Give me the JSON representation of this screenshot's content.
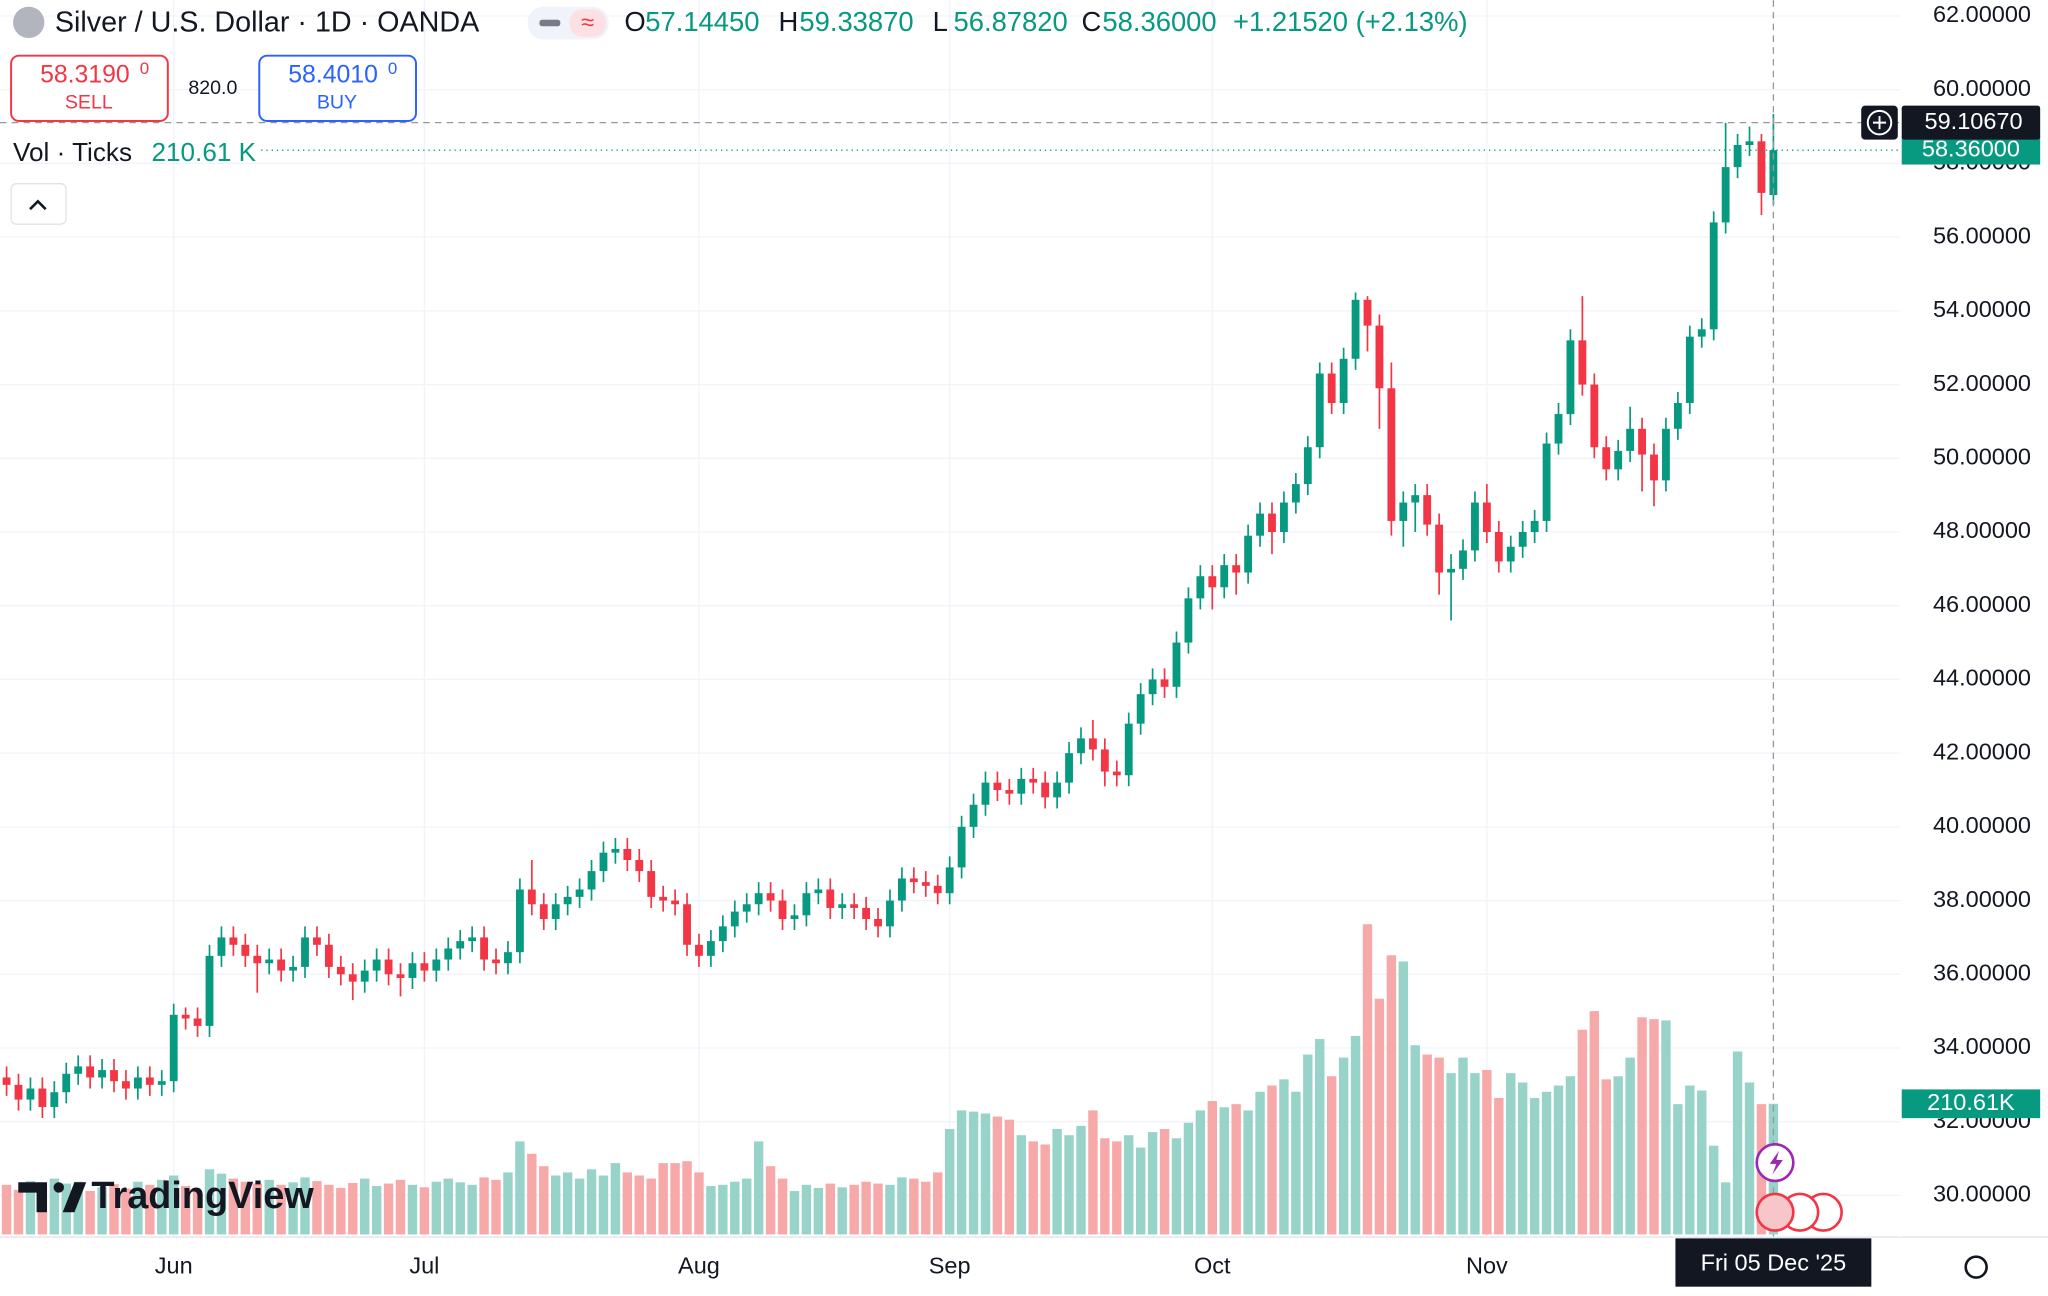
{
  "header": {
    "title": "Silver / U.S. Dollar · 1D · OANDA",
    "ohlc": [
      {
        "key": "O",
        "value": "57.14450"
      },
      {
        "key": "H",
        "value": "59.33870"
      },
      {
        "key": "L",
        "value": "56.87820"
      },
      {
        "key": "C",
        "value": "58.36000"
      }
    ],
    "change": "+1.21520 (+2.13%)"
  },
  "trade": {
    "sell_price": "58.3190",
    "sell_pip": "0",
    "sell_label": "SELL",
    "spread": "820.0",
    "buy_price": "58.4010",
    "buy_pip": "0",
    "buy_label": "BUY"
  },
  "volume_legend": {
    "name": "Vol · Ticks",
    "value": "210.61 K",
    "axis_label": "210.61K"
  },
  "logo": "TradingView",
  "chart_data": {
    "type": "candlestick",
    "up_color": "#089981",
    "down_color": "#f23645",
    "volume_up_color": "#98d3ca",
    "volume_down_color": "#f7a8a8",
    "grid": true,
    "xlim": [
      -0.55,
      158.64
    ],
    "xticks": [
      {
        "value": 14,
        "label": "Jun"
      },
      {
        "value": 35,
        "label": "Jul"
      },
      {
        "value": 58,
        "label": "Aug"
      },
      {
        "value": 79,
        "label": "Sep"
      },
      {
        "value": 101,
        "label": "Oct"
      },
      {
        "value": 124,
        "label": "Nov"
      }
    ],
    "ylim": [
      28.87,
      62.43
    ],
    "yticks": [
      {
        "value": 62,
        "label": "62.00000"
      },
      {
        "value": 60,
        "label": "60.00000"
      },
      {
        "value": 58,
        "label": "58.00000"
      },
      {
        "value": 56,
        "label": "56.00000"
      },
      {
        "value": 54,
        "label": "54.00000"
      },
      {
        "value": 52,
        "label": "52.00000"
      },
      {
        "value": 50,
        "label": "50.00000"
      },
      {
        "value": 48,
        "label": "48.00000"
      },
      {
        "value": 46,
        "label": "46.00000"
      },
      {
        "value": 44,
        "label": "44.00000"
      },
      {
        "value": 42,
        "label": "42.00000"
      },
      {
        "value": 40,
        "label": "40.00000"
      },
      {
        "value": 38,
        "label": "38.00000"
      },
      {
        "value": 36,
        "label": "36.00000"
      },
      {
        "value": 34,
        "label": "34.00000"
      },
      {
        "value": 32,
        "label": "32.00000"
      },
      {
        "value": 30,
        "label": "30.00000"
      }
    ],
    "last_price_label": "58.36000",
    "crosshair": {
      "x": 148,
      "y": 59.1067,
      "x_label": "Fri 05 Dec '25",
      "y_label": "59.10670"
    },
    "open": [
      33.2,
      33.0,
      32.6,
      32.9,
      32.4,
      32.8,
      33.3,
      33.5,
      33.2,
      33.4,
      33.1,
      32.9,
      33.2,
      33.0,
      33.1,
      34.9,
      34.8,
      34.6,
      36.5,
      37.0,
      36.8,
      36.5,
      36.3,
      36.4,
      36.1,
      36.2,
      37.0,
      36.8,
      36.2,
      36.0,
      35.8,
      36.1,
      36.4,
      36.0,
      35.9,
      36.3,
      36.1,
      36.4,
      36.7,
      36.9,
      37.0,
      36.4,
      36.3,
      36.6,
      38.3,
      37.9,
      37.5,
      37.9,
      38.1,
      38.3,
      38.8,
      39.3,
      39.4,
      39.1,
      38.8,
      38.1,
      38.0,
      37.9,
      36.8,
      36.5,
      36.9,
      37.3,
      37.7,
      37.9,
      38.2,
      38.0,
      37.5,
      37.6,
      38.2,
      38.3,
      37.8,
      37.9,
      37.8,
      37.5,
      37.3,
      38.0,
      38.6,
      38.5,
      38.4,
      38.2,
      38.9,
      40.0,
      40.6,
      41.2,
      41.0,
      40.9,
      41.3,
      41.2,
      40.8,
      41.2,
      42.0,
      42.4,
      42.1,
      41.5,
      41.4,
      42.8,
      43.6,
      44.0,
      43.8,
      45.0,
      46.2,
      46.8,
      46.5,
      47.1,
      46.9,
      47.9,
      48.5,
      48.0,
      48.8,
      49.3,
      50.3,
      52.3,
      51.5,
      52.7,
      54.3,
      53.6,
      51.9,
      48.3,
      48.8,
      49.0,
      48.2,
      46.9,
      47.0,
      47.5,
      48.8,
      48.0,
      47.2,
      47.6,
      48.0,
      48.3,
      50.4,
      51.2,
      53.2,
      52.0,
      50.3,
      49.7,
      50.2,
      50.8,
      50.1,
      49.4,
      50.8,
      51.5,
      53.3,
      53.5,
      56.4,
      57.9,
      58.5,
      58.6,
      57.1445
    ],
    "high": [
      33.5,
      33.3,
      33.2,
      33.2,
      33.1,
      33.6,
      33.8,
      33.8,
      33.7,
      33.7,
      33.4,
      33.5,
      33.5,
      33.4,
      35.2,
      35.1,
      35.1,
      36.8,
      37.3,
      37.3,
      37.1,
      36.8,
      36.7,
      36.7,
      36.5,
      37.3,
      37.3,
      37.1,
      36.5,
      36.3,
      36.4,
      36.7,
      36.7,
      36.3,
      36.6,
      36.6,
      36.7,
      37.0,
      37.2,
      37.3,
      37.3,
      36.7,
      36.9,
      38.6,
      39.1,
      38.2,
      38.2,
      38.4,
      38.6,
      39.1,
      39.6,
      39.7,
      39.7,
      39.4,
      39.1,
      38.4,
      38.3,
      38.2,
      37.1,
      37.2,
      37.6,
      38.0,
      38.2,
      38.5,
      38.5,
      38.3,
      37.9,
      38.5,
      38.6,
      38.6,
      38.2,
      38.2,
      38.1,
      37.8,
      38.3,
      38.9,
      38.9,
      38.8,
      38.7,
      39.2,
      40.3,
      40.9,
      41.5,
      41.5,
      41.3,
      41.6,
      41.6,
      41.5,
      41.5,
      42.3,
      42.7,
      42.9,
      42.4,
      41.8,
      43.1,
      43.9,
      44.3,
      44.3,
      45.3,
      46.5,
      47.1,
      47.1,
      47.4,
      47.4,
      48.2,
      48.8,
      48.8,
      49.1,
      49.6,
      50.6,
      52.6,
      52.6,
      53.0,
      54.5,
      54.4,
      53.9,
      52.6,
      49.1,
      49.3,
      49.3,
      48.5,
      47.4,
      47.8,
      49.1,
      49.3,
      48.3,
      47.9,
      48.3,
      48.6,
      50.7,
      51.5,
      53.5,
      54.4,
      52.3,
      50.6,
      50.5,
      51.4,
      51.1,
      50.4,
      51.1,
      51.8,
      53.6,
      53.8,
      56.7,
      59.1,
      58.8,
      59.0,
      58.8,
      59.3387
    ],
    "low": [
      32.7,
      32.3,
      32.3,
      32.1,
      32.1,
      32.5,
      33.0,
      32.9,
      32.9,
      32.8,
      32.6,
      32.6,
      32.7,
      32.7,
      32.8,
      34.5,
      34.3,
      34.3,
      36.2,
      36.5,
      36.2,
      35.5,
      36.0,
      35.8,
      35.8,
      35.9,
      36.5,
      35.9,
      35.7,
      35.3,
      35.5,
      35.8,
      35.7,
      35.4,
      35.6,
      35.8,
      35.8,
      36.1,
      36.4,
      36.6,
      36.1,
      36.0,
      36.0,
      36.3,
      37.6,
      37.2,
      37.2,
      37.6,
      37.8,
      38.0,
      38.5,
      39.0,
      38.8,
      38.5,
      37.8,
      37.7,
      37.6,
      36.5,
      36.2,
      36.2,
      36.6,
      37.0,
      37.4,
      37.6,
      37.7,
      37.2,
      37.2,
      37.3,
      37.9,
      37.5,
      37.5,
      37.5,
      37.2,
      37.0,
      37.0,
      37.7,
      38.2,
      38.1,
      37.9,
      37.9,
      38.6,
      39.7,
      40.3,
      40.7,
      40.6,
      40.6,
      40.9,
      40.5,
      40.5,
      40.9,
      41.7,
      41.8,
      41.1,
      41.1,
      41.1,
      42.5,
      43.3,
      43.5,
      43.5,
      44.7,
      45.9,
      45.9,
      46.2,
      46.3,
      46.6,
      47.6,
      47.4,
      47.7,
      48.5,
      49.0,
      50.0,
      51.2,
      51.2,
      52.4,
      52.9,
      50.8,
      47.9,
      47.6,
      48.0,
      47.9,
      46.3,
      45.6,
      46.7,
      47.2,
      47.7,
      46.9,
      46.9,
      47.3,
      47.7,
      48.0,
      50.1,
      50.9,
      51.7,
      50.0,
      49.4,
      49.4,
      49.9,
      49.1,
      48.7,
      49.1,
      50.5,
      51.2,
      53.0,
      53.2,
      56.1,
      57.6,
      58.2,
      56.6,
      56.8782
    ],
    "close": [
      33.0,
      32.6,
      32.9,
      32.4,
      32.8,
      33.3,
      33.5,
      33.2,
      33.4,
      33.1,
      32.9,
      33.2,
      33.0,
      33.1,
      34.9,
      34.8,
      34.6,
      36.5,
      37.0,
      36.8,
      36.5,
      36.3,
      36.4,
      36.1,
      36.2,
      37.0,
      36.8,
      36.2,
      36.0,
      35.8,
      36.1,
      36.4,
      36.0,
      35.9,
      36.3,
      36.1,
      36.4,
      36.7,
      36.9,
      37.0,
      36.4,
      36.3,
      36.6,
      38.3,
      37.9,
      37.5,
      37.9,
      38.1,
      38.3,
      38.8,
      39.3,
      39.4,
      39.1,
      38.8,
      38.1,
      38.0,
      37.9,
      36.8,
      36.5,
      36.9,
      37.3,
      37.7,
      37.9,
      38.2,
      38.0,
      37.5,
      37.6,
      38.2,
      38.3,
      37.8,
      37.9,
      37.8,
      37.5,
      37.3,
      38.0,
      38.6,
      38.5,
      38.4,
      38.2,
      38.9,
      40.0,
      40.6,
      41.2,
      41.0,
      40.9,
      41.3,
      41.2,
      40.8,
      41.2,
      42.0,
      42.4,
      42.1,
      41.5,
      41.4,
      42.8,
      43.6,
      44.0,
      43.8,
      45.0,
      46.2,
      46.8,
      46.5,
      47.1,
      46.9,
      47.9,
      48.5,
      48.0,
      48.8,
      49.3,
      50.3,
      52.3,
      51.5,
      52.7,
      54.3,
      53.6,
      51.9,
      48.3,
      48.8,
      49.0,
      48.2,
      46.9,
      47.0,
      47.5,
      48.8,
      48.0,
      47.2,
      47.6,
      48.0,
      48.3,
      50.4,
      51.2,
      53.2,
      52.0,
      50.3,
      49.7,
      50.2,
      50.8,
      50.1,
      49.4,
      50.8,
      51.5,
      53.3,
      53.5,
      56.4,
      57.9,
      58.5,
      58.6,
      57.2,
      58.36
    ],
    "volume": [
      80,
      72,
      86,
      75,
      90,
      82,
      85,
      70,
      76,
      81,
      74,
      85,
      80,
      88,
      95,
      78,
      70,
      105,
      98,
      90,
      85,
      82,
      88,
      80,
      84,
      92,
      86,
      80,
      75,
      83,
      90,
      78,
      82,
      88,
      80,
      76,
      85,
      90,
      84,
      80,
      92,
      88,
      100,
      150,
      130,
      110,
      95,
      100,
      90,
      105,
      95,
      115,
      100,
      95,
      90,
      115,
      115,
      118,
      100,
      78,
      80,
      85,
      90,
      150,
      110,
      90,
      70,
      80,
      75,
      82,
      76,
      80,
      85,
      82,
      80,
      92,
      90,
      85,
      100,
      170,
      200,
      198,
      195,
      190,
      185,
      160,
      150,
      145,
      170,
      160,
      175,
      200,
      155,
      150,
      160,
      140,
      165,
      170,
      155,
      180,
      200,
      215,
      205,
      210,
      200,
      230,
      240,
      250,
      230,
      290,
      315,
      255,
      285,
      320,
      500,
      380,
      450,
      440,
      305,
      290,
      285,
      260,
      285,
      260,
      265,
      220,
      260,
      245,
      220,
      230,
      240,
      255,
      330,
      360,
      250,
      255,
      285,
      350,
      347,
      345,
      210,
      240,
      232,
      143,
      84,
      295,
      245,
      210,
      210.61
    ]
  }
}
